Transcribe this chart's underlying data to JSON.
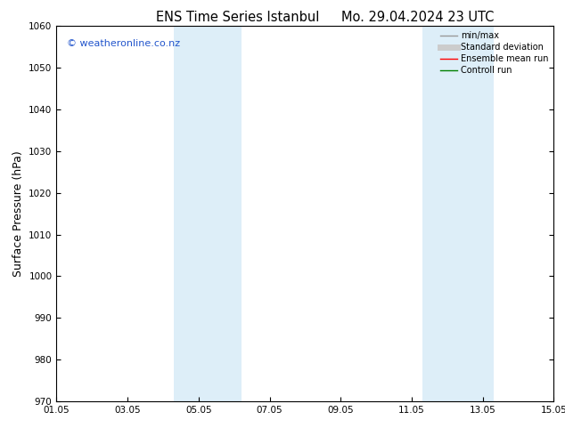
{
  "title_left": "ENS Time Series Istanbul",
  "title_right": "Mo. 29.04.2024 23 UTC",
  "ylabel": "Surface Pressure (hPa)",
  "ylim": [
    970,
    1060
  ],
  "yticks": [
    970,
    980,
    990,
    1000,
    1010,
    1020,
    1030,
    1040,
    1050,
    1060
  ],
  "xlim_start": 0,
  "xlim_end": 14,
  "xtick_labels": [
    "01.05",
    "03.05",
    "05.05",
    "07.05",
    "09.05",
    "11.05",
    "13.05",
    "15.05"
  ],
  "xtick_positions": [
    0,
    2,
    4,
    6,
    8,
    10,
    12,
    14
  ],
  "shade_bands": [
    {
      "x_start": 3.3,
      "x_end": 5.2,
      "color": "#ddeef8"
    },
    {
      "x_start": 10.3,
      "x_end": 12.3,
      "color": "#ddeef8"
    }
  ],
  "watermark_text": "© weatheronline.co.nz",
  "watermark_color": "#2255cc",
  "legend_items": [
    {
      "label": "min/max",
      "color": "#999999",
      "lw": 1.0,
      "ls": "-"
    },
    {
      "label": "Standard deviation",
      "color": "#cccccc",
      "lw": 5,
      "ls": "-"
    },
    {
      "label": "Ensemble mean run",
      "color": "red",
      "lw": 1.0,
      "ls": "-"
    },
    {
      "label": "Controll run",
      "color": "green",
      "lw": 1.0,
      "ls": "-"
    }
  ],
  "bg_color": "#ffffff",
  "plot_bg_color": "#ffffff",
  "tick_fontsize": 7.5,
  "label_fontsize": 9,
  "title_fontsize": 10.5
}
